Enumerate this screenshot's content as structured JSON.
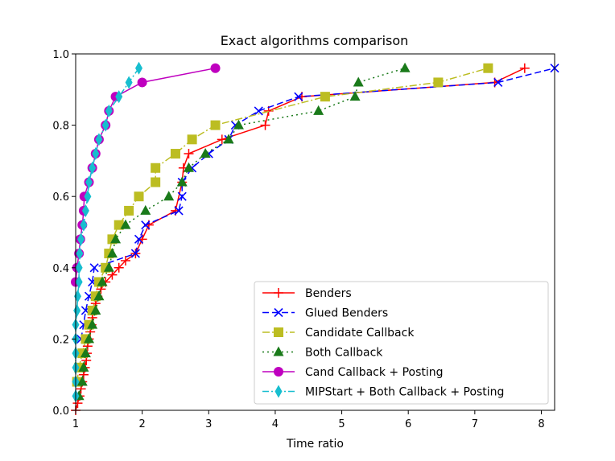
{
  "chart_data": {
    "type": "line",
    "title": "Exact algorithms comparison",
    "xlabel": "Time ratio",
    "ylabel": "",
    "xlim": [
      1,
      8.2
    ],
    "ylim": [
      0,
      1.0
    ],
    "xticks": [
      1,
      2,
      3,
      4,
      5,
      6,
      7,
      8
    ],
    "xtick_labels": [
      "1",
      "2",
      "3",
      "4",
      "5",
      "6",
      "7",
      "8"
    ],
    "yticks": [
      0,
      0.2,
      0.4,
      0.6,
      0.8,
      1.0
    ],
    "ytick_labels": [
      "0.0",
      "0.2",
      "0.4",
      "0.6",
      "0.8",
      "1.0"
    ],
    "legend_position": "lower-right",
    "series": [
      {
        "name": "Benders",
        "color": "#ff0000",
        "marker": "plus",
        "dash": "",
        "points": [
          [
            1.0,
            0.0
          ],
          [
            1.03,
            0.02
          ],
          [
            1.06,
            0.04
          ],
          [
            1.08,
            0.06
          ],
          [
            1.1,
            0.08
          ],
          [
            1.12,
            0.1
          ],
          [
            1.14,
            0.12
          ],
          [
            1.16,
            0.14
          ],
          [
            1.17,
            0.16
          ],
          [
            1.18,
            0.18
          ],
          [
            1.2,
            0.2
          ],
          [
            1.22,
            0.22
          ],
          [
            1.24,
            0.24
          ],
          [
            1.25,
            0.26
          ],
          [
            1.27,
            0.28
          ],
          [
            1.3,
            0.3
          ],
          [
            1.33,
            0.32
          ],
          [
            1.38,
            0.34
          ],
          [
            1.45,
            0.36
          ],
          [
            1.55,
            0.38
          ],
          [
            1.65,
            0.4
          ],
          [
            1.75,
            0.42
          ],
          [
            1.9,
            0.44
          ],
          [
            2.0,
            0.48
          ],
          [
            2.1,
            0.52
          ],
          [
            2.5,
            0.56
          ],
          [
            2.6,
            0.64
          ],
          [
            2.62,
            0.68
          ],
          [
            2.7,
            0.72
          ],
          [
            3.2,
            0.76
          ],
          [
            3.85,
            0.8
          ],
          [
            3.9,
            0.84
          ],
          [
            4.4,
            0.88
          ],
          [
            7.3,
            0.92
          ],
          [
            7.75,
            0.96
          ]
        ]
      },
      {
        "name": "Glued Benders",
        "color": "#0000ff",
        "marker": "x",
        "dash": "8,4",
        "points": [
          [
            1.08,
            0.2
          ],
          [
            1.12,
            0.24
          ],
          [
            1.15,
            0.28
          ],
          [
            1.2,
            0.32
          ],
          [
            1.25,
            0.36
          ],
          [
            1.28,
            0.4
          ],
          [
            1.9,
            0.44
          ],
          [
            1.95,
            0.48
          ],
          [
            2.05,
            0.52
          ],
          [
            2.55,
            0.56
          ],
          [
            2.6,
            0.6
          ],
          [
            2.6,
            0.64
          ],
          [
            2.75,
            0.68
          ],
          [
            3.0,
            0.72
          ],
          [
            3.3,
            0.76
          ],
          [
            3.4,
            0.8
          ],
          [
            3.75,
            0.84
          ],
          [
            4.35,
            0.88
          ],
          [
            7.35,
            0.92
          ],
          [
            8.2,
            0.96
          ]
        ]
      },
      {
        "name": "Candidate Callback",
        "color": "#bcbd22",
        "marker": "square",
        "dash": "9,3,2,3",
        "points": [
          [
            1.02,
            0.08
          ],
          [
            1.05,
            0.12
          ],
          [
            1.1,
            0.16
          ],
          [
            1.15,
            0.2
          ],
          [
            1.2,
            0.24
          ],
          [
            1.25,
            0.28
          ],
          [
            1.3,
            0.32
          ],
          [
            1.35,
            0.36
          ],
          [
            1.45,
            0.4
          ],
          [
            1.5,
            0.44
          ],
          [
            1.55,
            0.48
          ],
          [
            1.65,
            0.52
          ],
          [
            1.8,
            0.56
          ],
          [
            1.95,
            0.6
          ],
          [
            2.2,
            0.64
          ],
          [
            2.2,
            0.68
          ],
          [
            2.5,
            0.72
          ],
          [
            2.75,
            0.76
          ],
          [
            3.1,
            0.8
          ],
          [
            4.75,
            0.88
          ],
          [
            6.45,
            0.92
          ],
          [
            7.2,
            0.96
          ]
        ]
      },
      {
        "name": "Both Callback",
        "color": "#1a7a1a",
        "marker": "triangle",
        "dash": "2,4",
        "points": [
          [
            1.05,
            0.04
          ],
          [
            1.1,
            0.08
          ],
          [
            1.12,
            0.12
          ],
          [
            1.15,
            0.16
          ],
          [
            1.2,
            0.2
          ],
          [
            1.25,
            0.24
          ],
          [
            1.3,
            0.28
          ],
          [
            1.35,
            0.32
          ],
          [
            1.4,
            0.36
          ],
          [
            1.5,
            0.4
          ],
          [
            1.55,
            0.44
          ],
          [
            1.6,
            0.48
          ],
          [
            1.75,
            0.52
          ],
          [
            2.05,
            0.56
          ],
          [
            2.4,
            0.6
          ],
          [
            2.6,
            0.64
          ],
          [
            2.7,
            0.68
          ],
          [
            2.95,
            0.72
          ],
          [
            3.3,
            0.76
          ],
          [
            3.45,
            0.8
          ],
          [
            4.65,
            0.84
          ],
          [
            5.2,
            0.88
          ],
          [
            5.25,
            0.92
          ],
          [
            5.95,
            0.96
          ]
        ]
      },
      {
        "name": "Cand Callback + Posting",
        "color": "#bf00bf",
        "marker": "circle",
        "dash": "",
        "points": [
          [
            1.0,
            0.36
          ],
          [
            1.02,
            0.4
          ],
          [
            1.05,
            0.44
          ],
          [
            1.07,
            0.48
          ],
          [
            1.1,
            0.52
          ],
          [
            1.12,
            0.56
          ],
          [
            1.13,
            0.6
          ],
          [
            1.2,
            0.64
          ],
          [
            1.25,
            0.68
          ],
          [
            1.3,
            0.72
          ],
          [
            1.35,
            0.76
          ],
          [
            1.45,
            0.8
          ],
          [
            1.5,
            0.84
          ],
          [
            1.6,
            0.88
          ],
          [
            2.0,
            0.92
          ],
          [
            3.1,
            0.96
          ]
        ]
      },
      {
        "name": "MIPStart + Both Callback + Posting",
        "color": "#17becf",
        "marker": "diamond",
        "dash": "8,3,2,3",
        "points": [
          [
            1.0,
            0.04
          ],
          [
            1.0,
            0.08
          ],
          [
            1.0,
            0.12
          ],
          [
            1.0,
            0.16
          ],
          [
            1.0,
            0.2
          ],
          [
            1.0,
            0.24
          ],
          [
            1.02,
            0.28
          ],
          [
            1.03,
            0.32
          ],
          [
            1.05,
            0.36
          ],
          [
            1.05,
            0.4
          ],
          [
            1.06,
            0.44
          ],
          [
            1.08,
            0.48
          ],
          [
            1.12,
            0.52
          ],
          [
            1.15,
            0.56
          ],
          [
            1.18,
            0.6
          ],
          [
            1.2,
            0.64
          ],
          [
            1.25,
            0.68
          ],
          [
            1.3,
            0.72
          ],
          [
            1.35,
            0.76
          ],
          [
            1.45,
            0.8
          ],
          [
            1.5,
            0.84
          ],
          [
            1.65,
            0.88
          ],
          [
            1.8,
            0.92
          ],
          [
            1.95,
            0.96
          ]
        ]
      }
    ]
  }
}
